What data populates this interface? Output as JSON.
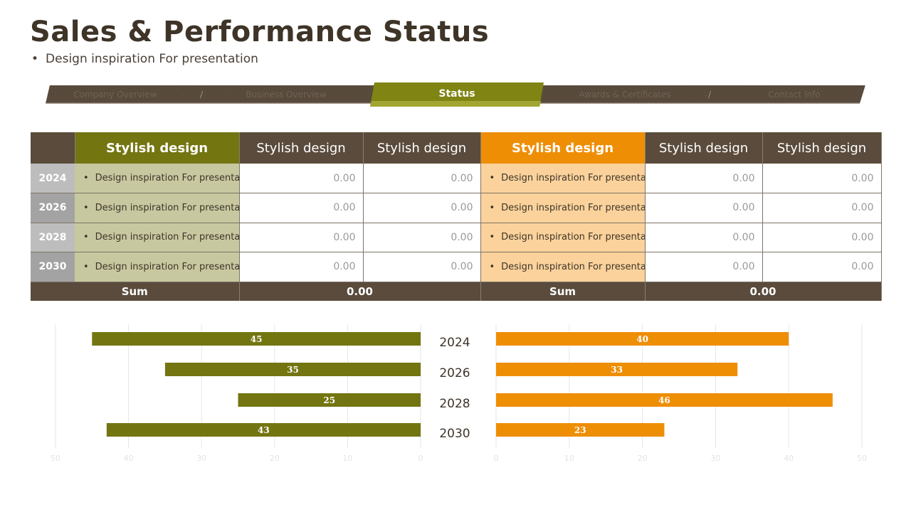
{
  "title": "Sales & Performance Status",
  "subtitle": "Design inspiration For presentation",
  "nav": {
    "items": [
      "Company Overview",
      "Business Overview",
      "Status",
      "Awards & Certificates",
      "Contact Info"
    ],
    "separator": "/",
    "active_index": 2
  },
  "colors": {
    "brown": "#5a4b3c",
    "olive": "#737511",
    "orange": "#ee8e05",
    "olive_light": "#c8c8a0",
    "orange_light": "#fbd29b"
  },
  "table": {
    "headers": [
      "",
      "Stylish design",
      "Stylish design",
      "Stylish design",
      "Stylish design",
      "Stylish design",
      "Stylish design"
    ],
    "rows": [
      {
        "year": "2024",
        "desc_left": "Design inspiration For presentation",
        "v1": "0.00",
        "v2": "0.00",
        "desc_right": "Design inspiration For presentation",
        "v3": "0.00",
        "v4": "0.00"
      },
      {
        "year": "2026",
        "desc_left": "Design inspiration For presentation",
        "v1": "0.00",
        "v2": "0.00",
        "desc_right": "Design inspiration For presentation",
        "v3": "0.00",
        "v4": "0.00"
      },
      {
        "year": "2028",
        "desc_left": "Design inspiration For presentation",
        "v1": "0.00",
        "v2": "0.00",
        "desc_right": "Design inspiration For presentation",
        "v3": "0.00",
        "v4": "0.00"
      },
      {
        "year": "2030",
        "desc_left": "Design inspiration For presentation",
        "v1": "0.00",
        "v2": "0.00",
        "desc_right": "Design inspiration For presentation",
        "v3": "0.00",
        "v4": "0.00"
      }
    ],
    "footer": {
      "sum_left_label": "Sum",
      "sum_left_value": "0.00",
      "sum_right_label": "Sum",
      "sum_right_value": "0.00"
    }
  },
  "chart_data": {
    "type": "bar",
    "orientation": "horizontal",
    "categories": [
      "2024",
      "2026",
      "2028",
      "2030"
    ],
    "series": [
      {
        "values": [
          45,
          35,
          25,
          43
        ],
        "color": "#737511",
        "direction": "left"
      },
      {
        "values": [
          40,
          33,
          46,
          23
        ],
        "color": "#ee8e05",
        "direction": "right"
      }
    ],
    "xlim": [
      0,
      50
    ],
    "ticks": [
      0,
      10,
      20,
      30,
      40,
      50
    ],
    "grid": true,
    "data_labels": true
  }
}
